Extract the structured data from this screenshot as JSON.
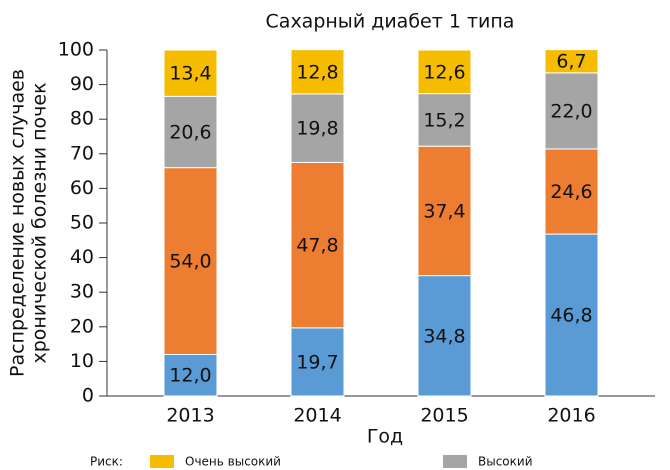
{
  "chart_data": {
    "type": "stacked_bar",
    "title": "Сахарный диабет 1 типа",
    "ylabel": [
      "Распределение новых случаев",
      "хронической болезни почек"
    ],
    "xlabel": "Год",
    "legend_title": "Риск:",
    "categories": [
      "2013",
      "2014",
      "2015",
      "2016"
    ],
    "series": [
      {
        "color": "#5b9bd5",
        "values": [
          12.0,
          19.7,
          34.8,
          46.8
        ],
        "value_labels": [
          "12,0",
          "19,7",
          "34,8",
          "46,8"
        ]
      },
      {
        "color": "#ed7d31",
        "values": [
          54.0,
          47.8,
          37.4,
          24.6
        ],
        "value_labels": [
          "54,0",
          "47,8",
          "37,4",
          "24,6"
        ]
      },
      {
        "name": "Высокий",
        "color": "#a5a5a5",
        "values": [
          20.6,
          19.8,
          15.2,
          22.0
        ],
        "value_labels": [
          "20,6",
          "19,8",
          "15,2",
          "22,0"
        ]
      },
      {
        "name": "Очень высокий",
        "color": "#f5bc00",
        "values": [
          13.4,
          12.8,
          12.6,
          6.7
        ],
        "value_labels": [
          "13,4",
          "12,8",
          "12,6",
          "6,7"
        ]
      }
    ],
    "ylim": [
      0,
      100
    ],
    "yticks": [
      0,
      10,
      20,
      30,
      40,
      50,
      60,
      70,
      80,
      90,
      100
    ],
    "grid": false
  }
}
